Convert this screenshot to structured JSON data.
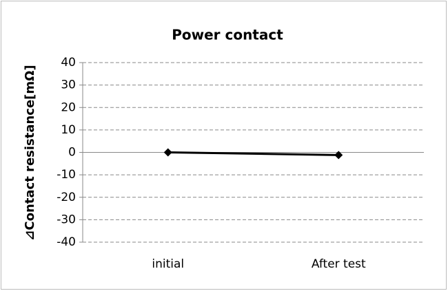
{
  "chart_data": {
    "type": "line",
    "title": "Power contact",
    "y_label": "⊿Contact resistance[mΩ]",
    "categories": [
      "initial",
      "After test"
    ],
    "series": [
      {
        "name": "Power contact",
        "color": "#000000",
        "values": [
          0,
          -1.2
        ]
      }
    ],
    "ylim": [
      -40,
      40
    ],
    "yticks": [
      -40,
      -30,
      -20,
      -10,
      0,
      10,
      20,
      30,
      40
    ],
    "grid": true
  }
}
